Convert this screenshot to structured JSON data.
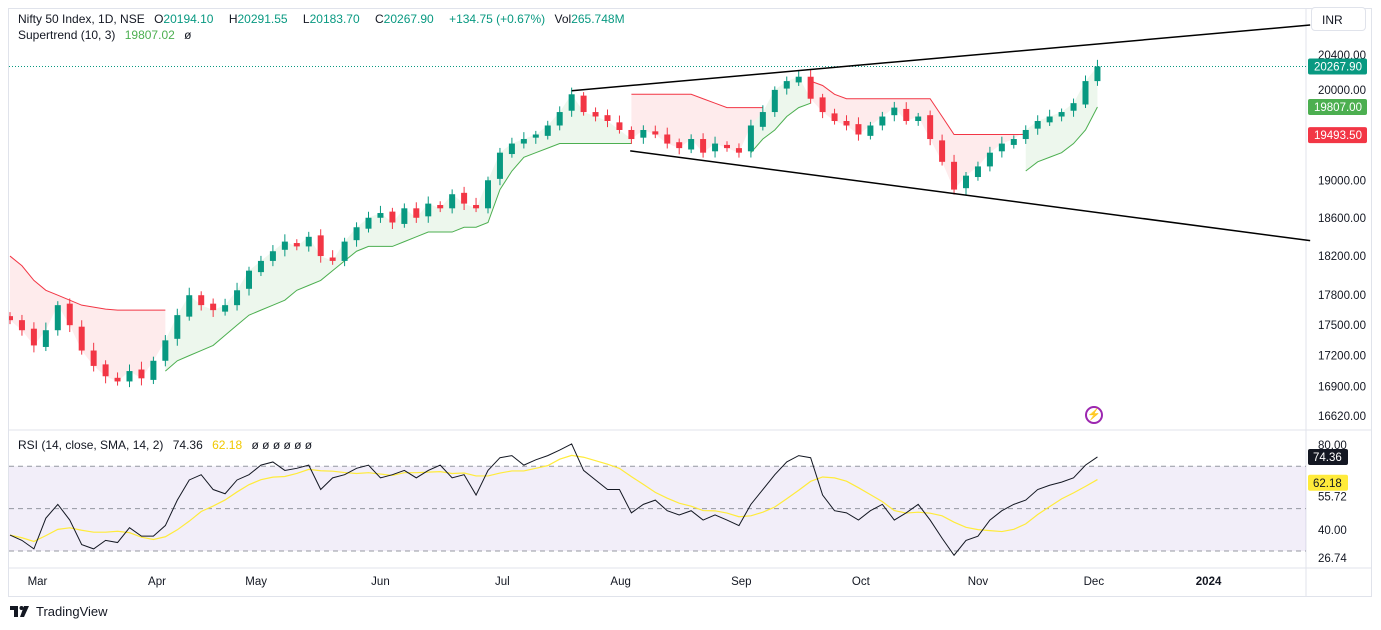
{
  "header": {
    "symbol": "Nifty 50 Index, 1D, NSE",
    "open_label": "O",
    "open": "20194.10",
    "high_label": "H",
    "high": "20291.55",
    "low_label": "L",
    "low": "20183.70",
    "close_label": "C",
    "close": "20267.90",
    "change": "+134.75 (+0.67%)",
    "volume_label": "Vol",
    "volume": "265.748M",
    "supertrend_label": "Supertrend (10, 3)",
    "supertrend_value": "19807.02",
    "supertrend_extra": "ø"
  },
  "currency": "INR",
  "rsi_legend": {
    "label": "RSI (14, close, SMA, 14, 2)",
    "rsi": "74.36",
    "sma": "62.18",
    "extra": "ø ø ø ø ø ø"
  },
  "branding": "TradingView",
  "colors": {
    "up": "#089981",
    "down": "#f23645",
    "st_up": "#4caf50",
    "st_down": "#f23645",
    "rsi": "#131722",
    "rsi_sma": "#ffeb3b",
    "rsi_band": "#7e57c2"
  },
  "chart_data": [
    {
      "type": "candlestick",
      "scale": "log",
      "price_axis_ticks": [
        "20400.00",
        "20000.00",
        "19000.00",
        "18600.00",
        "18200.00",
        "17800.00",
        "17500.00",
        "17200.00",
        "16900.00",
        "16620.00"
      ],
      "price_tick_values": [
        20400,
        20000,
        19000,
        18600,
        18200,
        17800,
        17500,
        17200,
        16900,
        16620
      ],
      "ylim": [
        16450,
        20750
      ],
      "time_axis_labels": [
        {
          "label": "Mar",
          "bar": 2.3
        },
        {
          "label": "Apr",
          "bar": 12.3
        },
        {
          "label": "May",
          "bar": 20.6
        },
        {
          "label": "Jun",
          "bar": 31
        },
        {
          "label": "Jul",
          "bar": 41.2
        },
        {
          "label": "Aug",
          "bar": 51.1
        },
        {
          "label": "Sep",
          "bar": 61.2
        },
        {
          "label": "Oct",
          "bar": 71.2
        },
        {
          "label": "Nov",
          "bar": 81
        },
        {
          "label": "Dec",
          "bar": 90.7
        },
        {
          "label": "2024",
          "bar": 100.3
        }
      ],
      "closes": [
        17550,
        17450,
        17300,
        17450,
        17700,
        17500,
        17250,
        17100,
        17000,
        16950,
        17050,
        16980,
        17150,
        17350,
        17600,
        17800,
        17700,
        17650,
        17700,
        17850,
        18050,
        18150,
        18250,
        18350,
        18300,
        18400,
        18200,
        18150,
        18350,
        18500,
        18600,
        18650,
        18550,
        18700,
        18600,
        18750,
        18700,
        18850,
        18750,
        18700,
        19000,
        19300,
        19400,
        19450,
        19500,
        19600,
        19750,
        19950,
        19750,
        19700,
        19650,
        19550,
        19450,
        19550,
        19500,
        19400,
        19350,
        19450,
        19300,
        19400,
        19350,
        19300,
        19600,
        19750,
        20000,
        20100,
        20150,
        19900,
        19750,
        19650,
        19600,
        19500,
        19600,
        19700,
        19800,
        19650,
        19700,
        19450,
        19200,
        18900,
        19050,
        19150,
        19300,
        19400,
        19450,
        19550,
        19650,
        19700,
        19750,
        19850,
        20100,
        20267.9
      ],
      "last_price_label": "20267.90",
      "supertrend": [
        {
          "trend": "down",
          "start": 0,
          "values": [
            18200,
            18100,
            17950,
            17850,
            17800,
            17750,
            17700,
            17680,
            17660,
            17650,
            17650,
            17650,
            17650,
            17650
          ]
        },
        {
          "trend": "up",
          "start": 13,
          "values": [
            17050,
            17150,
            17200,
            17250,
            17300,
            17400,
            17500,
            17600,
            17650,
            17700,
            17750,
            17850,
            17900,
            17950,
            18050,
            18150,
            18250,
            18300,
            18300,
            18300,
            18350,
            18400,
            18450,
            18450,
            18450,
            18500,
            18500,
            18550,
            18900,
            19100,
            19250,
            19300,
            19350,
            19400,
            19400,
            19400,
            19400,
            19400,
            19400,
            19400
          ]
        },
        {
          "trend": "down",
          "start": 52,
          "values": [
            19950,
            19950,
            19950,
            19950,
            19950,
            19950,
            19900,
            19850,
            19800,
            19800,
            19800,
            19800
          ]
        },
        {
          "trend": "up",
          "start": 62,
          "values": [
            19300,
            19450,
            19550,
            19700,
            19800,
            19850
          ]
        },
        {
          "trend": "down",
          "start": 67,
          "values": [
            20100,
            20050,
            19950,
            19900,
            19900,
            19900,
            19900,
            19900,
            19900,
            19900,
            19900,
            19700,
            19500,
            19500,
            19500,
            19500,
            19500,
            19500,
            19500
          ]
        },
        {
          "trend": "up",
          "start": 85,
          "values": [
            19100,
            19200,
            19250,
            19300,
            19400,
            19550,
            19807
          ]
        }
      ],
      "price_labels": [
        {
          "text": "20267.90",
          "value": 20267.9,
          "color": "#089981"
        },
        {
          "text": "19807.00",
          "value": 19807,
          "color": "#4caf50"
        },
        {
          "text": "19493.50",
          "value": 19493.5,
          "color": "#f23645"
        }
      ],
      "trendlines": [
        {
          "from": {
            "bar": 47,
            "price": 19990
          },
          "to": {
            "bar": 108.8,
            "price": 20750
          }
        },
        {
          "from": {
            "bar": 51.9,
            "price": 19320
          },
          "to": {
            "bar": 108.8,
            "price": 18360
          }
        }
      ]
    },
    {
      "type": "line",
      "title": "RSI (14, close, SMA, 14, 2)",
      "ylim": [
        26.74,
        80
      ],
      "axis_ticks": [
        "80.00",
        "55.72",
        "40.00",
        "26.74"
      ],
      "axis_tick_values": [
        80,
        55.72,
        40,
        26.74
      ],
      "bands": [
        70,
        50,
        30
      ],
      "rsi": [
        37.5,
        35,
        31,
        45.5,
        52,
        44.6,
        33,
        31,
        35,
        34,
        41,
        37,
        37,
        42,
        54,
        63.5,
        66,
        59,
        57,
        63.5,
        66,
        70.5,
        72,
        68,
        69,
        70.5,
        59,
        64.5,
        66,
        69,
        70.5,
        64.5,
        66,
        68,
        64.5,
        68,
        70.5,
        64.5,
        66,
        56.4,
        68,
        74,
        75,
        70.5,
        73,
        75,
        77.6,
        80.5,
        68,
        63.5,
        59,
        59,
        48,
        52,
        54,
        49,
        47,
        49,
        44.6,
        47,
        44.6,
        42,
        52,
        59,
        66,
        72,
        75,
        74,
        56.4,
        49,
        48,
        44.6,
        49,
        52,
        44.6,
        48,
        52,
        44.6,
        36,
        28,
        35,
        37,
        44.6,
        49,
        52,
        54,
        59,
        61,
        62.5,
        64.5,
        70.5,
        74.36
      ],
      "labels": [
        {
          "text": "74.36",
          "value": 74.36,
          "color": "#131722"
        },
        {
          "text": "62.18",
          "value": 62.18,
          "color": "#ffeb3b"
        }
      ]
    }
  ]
}
